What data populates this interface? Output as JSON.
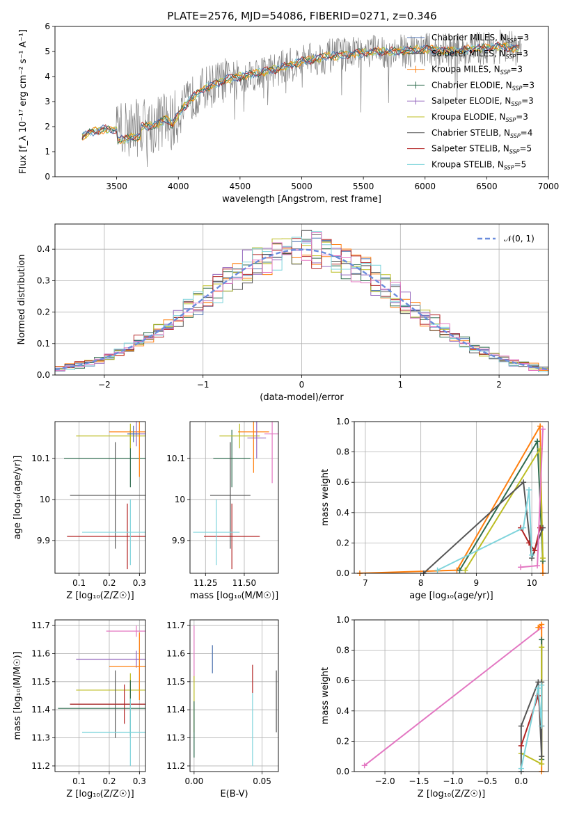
{
  "title": "PLATE=2576, MJD=54086, FIBERID=0271, z=0.346",
  "colors": {
    "Chabrier MILES": "#4c72b0",
    "Salpeter MILES": "#333333",
    "Kroupa MILES": "#ff7f0e",
    "Chabrier ELODIE": "#2e6b4e",
    "Salpeter ELODIE": "#9467bd",
    "Kroupa ELODIE": "#bcbd22",
    "Chabrier STELIB": "#555555",
    "Salpeter STELIB": "#b22222",
    "Kroupa STELIB": "#7fd4dc",
    "extra": "#e377c2",
    "blue": "#4c72b0",
    "normal": "#6a8cdc"
  },
  "chart_data": [
    {
      "id": "spectrum",
      "type": "line",
      "xlabel": "wavelength [Angstrom, rest frame]",
      "ylabel": "Flux [f_λ 10⁻¹⁷ erg cm⁻² s⁻¹ A⁻¹]",
      "xlim": [
        3000,
        7000
      ],
      "ylim": [
        0,
        6
      ],
      "xticks": [
        3500,
        4000,
        4500,
        5000,
        5500,
        6000,
        6500,
        7000
      ],
      "yticks": [
        0,
        1,
        2,
        3,
        4,
        5,
        6
      ],
      "legend_position": "right",
      "legend": [
        {
          "label": "Chabrier MILES, N",
          "sub": "SSP",
          "suffix": "=3",
          "key": "Chabrier MILES"
        },
        {
          "label": "Salpeter MILES, N",
          "sub": "SSP",
          "suffix": "=3",
          "key": "Salpeter MILES"
        },
        {
          "label": "Kroupa MILES, N",
          "sub": "SSP",
          "suffix": "=3",
          "key": "Kroupa MILES"
        },
        {
          "label": "Chabrier ELODIE, N",
          "sub": "SSP",
          "suffix": "=3",
          "key": "Chabrier ELODIE"
        },
        {
          "label": "Salpeter ELODIE, N",
          "sub": "SSP",
          "suffix": "=3",
          "key": "Salpeter ELODIE"
        },
        {
          "label": "Kroupa ELODIE, N",
          "sub": "SSP",
          "suffix": "=3",
          "key": "Kroupa ELODIE"
        },
        {
          "label": "Chabrier STELIB, N",
          "sub": "SSP",
          "suffix": "=4",
          "key": "Chabrier STELIB"
        },
        {
          "label": "Salpeter STELIB, N",
          "sub": "SSP",
          "suffix": "=5",
          "key": "Salpeter STELIB"
        },
        {
          "label": "Kroupa STELIB, N",
          "sub": "SSP",
          "suffix": "=5",
          "key": "Kroupa STELIB"
        }
      ],
      "continuum": {
        "wavelength": [
          3220,
          3300,
          3400,
          3500,
          3600,
          3700,
          3800,
          3900,
          3950,
          4000,
          4100,
          4200,
          4300,
          4400,
          4500,
          4600,
          4800,
          5000,
          5200,
          5400,
          5600,
          5800,
          6000,
          6200,
          6400,
          6600,
          6800
        ],
        "flux": [
          1.6,
          1.8,
          1.9,
          1.85,
          1.95,
          2.0,
          2.05,
          2.3,
          2.1,
          2.5,
          3.1,
          3.5,
          3.7,
          3.9,
          4.0,
          4.1,
          4.3,
          4.6,
          4.8,
          4.9,
          5.0,
          5.0,
          5.1,
          5.0,
          5.1,
          5.2,
          5.1
        ]
      }
    },
    {
      "id": "residuals",
      "type": "step",
      "xlabel": "(data-model)/error",
      "ylabel": "Normed distribution",
      "xlim": [
        -2.5,
        2.5
      ],
      "ylim": [
        0,
        0.48
      ],
      "xticks": [
        -2,
        -1,
        0,
        1,
        2
      ],
      "yticks": [
        0.0,
        0.1,
        0.2,
        0.3,
        0.4
      ],
      "legend_position": "top-right",
      "normal_label": "𝒩(0, 1)",
      "bin_width": 0.1
    },
    {
      "id": "age-vs-Z",
      "type": "errorbar",
      "xlabel": "Z [log₁₀(Z/Z☉)]",
      "ylabel": "age  [log₁₀(age/yr)]",
      "xlim": [
        0.02,
        0.32
      ],
      "ylim": [
        9.82,
        10.19
      ],
      "xticks": [
        0.1,
        0.2,
        0.3
      ],
      "yticks": [
        9.9,
        10.0,
        10.1
      ],
      "points": [
        {
          "key": "Chabrier ELODIE",
          "x": 0.27,
          "y": 10.1,
          "xerr": 0.22,
          "yerr": 0.07
        },
        {
          "key": "Kroupa ELODIE",
          "x": 0.27,
          "y": 10.155,
          "xerr": 0.18,
          "yerr": 0.03
        },
        {
          "key": "Kroupa MILES",
          "x": 0.3,
          "y": 10.165,
          "xerr": 0.1,
          "yerr": 0.11
        },
        {
          "key": "Salpeter ELODIE",
          "x": 0.29,
          "y": 10.16,
          "xerr": 0.03,
          "yerr": 0.03
        },
        {
          "key": "Chabrier STELIB",
          "x": 0.22,
          "y": 10.01,
          "xerr": 0.15,
          "yerr": 0.13
        },
        {
          "key": "Salpeter STELIB",
          "x": 0.26,
          "y": 9.91,
          "xerr": 0.2,
          "yerr": 0.08
        },
        {
          "key": "Kroupa STELIB",
          "x": 0.27,
          "y": 9.92,
          "xerr": 0.16,
          "yerr": 0.08
        },
        {
          "key": "Chabrier MILES",
          "x": 0.28,
          "y": 10.16,
          "xerr": 0.02,
          "yerr": 0.02
        }
      ]
    },
    {
      "id": "age-vs-mass",
      "type": "errorbar",
      "xlabel": "mass [log₁₀(M/M☉)]",
      "ylabel": "",
      "xlim": [
        11.15,
        11.72
      ],
      "ylim": [
        9.82,
        10.19
      ],
      "xticks": [
        11.25,
        11.5
      ],
      "xticklabels": [
        "11.25",
        "11.50"
      ],
      "yticks": [
        9.9,
        10.0,
        10.1
      ],
      "points": [
        {
          "key": "Chabrier ELODIE",
          "x": 11.42,
          "y": 10.1,
          "xerr": 0.12,
          "yerr": 0.07
        },
        {
          "key": "Kroupa ELODIE",
          "x": 11.47,
          "y": 10.155,
          "xerr": 0.13,
          "yerr": 0.03
        },
        {
          "key": "Kroupa MILES",
          "x": 11.56,
          "y": 10.165,
          "xerr": 0.1,
          "yerr": 0.1
        },
        {
          "key": "Salpeter ELODIE",
          "x": 11.58,
          "y": 10.15,
          "xerr": 0.06,
          "yerr": 0.05
        },
        {
          "key": "extra",
          "x": 11.68,
          "y": 10.16,
          "xerr": 0.05,
          "yerr": 0.12
        },
        {
          "key": "Chabrier STELIB",
          "x": 11.41,
          "y": 10.01,
          "xerr": 0.13,
          "yerr": 0.13
        },
        {
          "key": "Salpeter STELIB",
          "x": 11.42,
          "y": 9.91,
          "xerr": 0.18,
          "yerr": 0.08
        },
        {
          "key": "Kroupa STELIB",
          "x": 11.32,
          "y": 9.92,
          "xerr": 0.15,
          "yerr": 0.08
        }
      ]
    },
    {
      "id": "massweight-vs-age",
      "type": "line",
      "xlabel": "age  [log₁₀(age/yr)]",
      "ylabel": "mass weight",
      "xlim": [
        6.8,
        10.3
      ],
      "ylim": [
        0,
        1.0
      ],
      "xticks": [
        7,
        8,
        9,
        10
      ],
      "yticks": [
        0.0,
        0.2,
        0.4,
        0.6,
        0.8,
        1.0
      ],
      "series": [
        {
          "key": "Kroupa MILES",
          "x": [
            6.9,
            8.65,
            10.15,
            10.2
          ],
          "y": [
            0.0,
            0.02,
            0.97,
            0.0
          ]
        },
        {
          "key": "Chabrier ELODIE",
          "x": [
            8.7,
            10.1,
            10.2
          ],
          "y": [
            0.02,
            0.87,
            0.08
          ]
        },
        {
          "key": "Kroupa ELODIE",
          "x": [
            8.8,
            10.15,
            10.2
          ],
          "y": [
            0.02,
            0.82,
            0.1
          ]
        },
        {
          "key": "Chabrier STELIB",
          "x": [
            8.05,
            9.85,
            10.0,
            10.2
          ],
          "y": [
            0.0,
            0.6,
            0.1,
            0.3
          ]
        },
        {
          "key": "Salpeter STELIB",
          "x": [
            9.8,
            9.95,
            10.05,
            10.15
          ],
          "y": [
            0.3,
            0.2,
            0.15,
            0.3
          ]
        },
        {
          "key": "Kroupa STELIB",
          "x": [
            8.3,
            9.85,
            9.95,
            10.0
          ],
          "y": [
            0.02,
            0.3,
            0.55,
            0.12
          ]
        },
        {
          "key": "extra",
          "x": [
            9.8,
            10.1,
            10.2
          ],
          "y": [
            0.04,
            0.05,
            0.95
          ]
        }
      ]
    },
    {
      "id": "mass-vs-Z",
      "type": "errorbar",
      "xlabel": "Z [log₁₀(Z/Z☉)]",
      "ylabel": "mass [log₁₀(M/M☉)]",
      "xlim": [
        0.02,
        0.32
      ],
      "ylim": [
        11.18,
        11.72
      ],
      "xticks": [
        0.1,
        0.2,
        0.3
      ],
      "yticks": [
        11.2,
        11.3,
        11.4,
        11.5,
        11.6,
        11.7
      ],
      "points": [
        {
          "key": "extra",
          "x": 0.29,
          "y": 11.68,
          "xerr": 0.1,
          "yerr": 0.02
        },
        {
          "key": "Salpeter ELODIE",
          "x": 0.29,
          "y": 11.58,
          "xerr": 0.2,
          "yerr": 0.03
        },
        {
          "key": "Kroupa MILES",
          "x": 0.3,
          "y": 11.555,
          "xerr": 0.1,
          "yerr": 0.12
        },
        {
          "key": "Kroupa ELODIE",
          "x": 0.27,
          "y": 11.47,
          "xerr": 0.18,
          "yerr": 0.06
        },
        {
          "key": "Chabrier STELIB",
          "x": 0.22,
          "y": 11.42,
          "xerr": 0.15,
          "yerr": 0.12
        },
        {
          "key": "Salpeter STELIB",
          "x": 0.25,
          "y": 11.42,
          "xerr": 0.18,
          "yerr": 0.07
        },
        {
          "key": "Chabrier ELODIE",
          "x": 0.27,
          "y": 11.405,
          "xerr": 0.24,
          "yerr": 0.1
        },
        {
          "key": "Kroupa STELIB",
          "x": 0.27,
          "y": 11.32,
          "xerr": 0.16,
          "yerr": 0.12
        }
      ]
    },
    {
      "id": "mass-vs-ebv",
      "type": "errorbar",
      "xlabel": "E(B-V)",
      "ylabel": "",
      "xlim": [
        -0.003,
        0.062
      ],
      "ylim": [
        11.18,
        11.72
      ],
      "xticks": [
        0.0,
        0.05
      ],
      "xticklabels": [
        "0.00",
        "0.05"
      ],
      "yticks": [
        11.2,
        11.3,
        11.4,
        11.5,
        11.6,
        11.7
      ],
      "points": [
        {
          "key": "extra",
          "x": 0.0,
          "y": 11.6,
          "xerr": 0,
          "yerr": 0.1
        },
        {
          "key": "Kroupa ELODIE",
          "x": 0.0,
          "y": 11.42,
          "xerr": 0,
          "yerr": 0.1
        },
        {
          "key": "Chabrier ELODIE",
          "x": 0.0,
          "y": 11.33,
          "xerr": 0,
          "yerr": 0.1
        },
        {
          "key": "blue",
          "x": 0.0135,
          "y": 11.58,
          "xerr": 0,
          "yerr": 0.05
        },
        {
          "key": "Salpeter STELIB",
          "x": 0.043,
          "y": 11.51,
          "xerr": 0,
          "yerr": 0.05
        },
        {
          "key": "Kroupa STELIB",
          "x": 0.043,
          "y": 11.33,
          "xerr": 0,
          "yerr": 0.13
        },
        {
          "key": "Chabrier STELIB",
          "x": 0.0605,
          "y": 11.43,
          "xerr": 0,
          "yerr": 0.11
        }
      ]
    },
    {
      "id": "massweight-vs-Z",
      "type": "line",
      "xlabel": "Z [log₁₀(Z/Z☉)]",
      "ylabel": "mass weight",
      "xlim": [
        -2.45,
        0.4
      ],
      "ylim": [
        0,
        1.0
      ],
      "xticks": [
        -2.0,
        -1.5,
        -1.0,
        -0.5,
        0.0
      ],
      "xticklabels": [
        "−2.0",
        "−1.5",
        "−1.0",
        "−0.5",
        "0.0"
      ],
      "yticks": [
        0.0,
        0.2,
        0.4,
        0.6,
        0.8,
        1.0
      ],
      "series": [
        {
          "key": "extra",
          "x": [
            -2.3,
            0.3
          ],
          "y": [
            0.04,
            0.95
          ]
        },
        {
          "key": "Kroupa MILES",
          "x": [
            0.3,
            0.3,
            0.25
          ],
          "y": [
            0.0,
            0.97,
            0.95
          ]
        },
        {
          "key": "Chabrier ELODIE",
          "x": [
            0.3,
            0.3
          ],
          "y": [
            0.08,
            0.87
          ]
        },
        {
          "key": "Kroupa ELODIE",
          "x": [
            0.0,
            0.3,
            0.3
          ],
          "y": [
            0.12,
            0.05,
            0.82
          ]
        },
        {
          "key": "Chabrier STELIB",
          "x": [
            0.0,
            0.0,
            0.25,
            0.3,
            0.3
          ],
          "y": [
            0.0,
            0.3,
            0.59,
            0.1,
            0.59
          ]
        },
        {
          "key": "Salpeter STELIB",
          "x": [
            0.0,
            0.25,
            0.3
          ],
          "y": [
            0.17,
            0.5,
            0.3
          ]
        },
        {
          "key": "Kroupa STELIB",
          "x": [
            0.0,
            0.25,
            0.3,
            0.3
          ],
          "y": [
            0.02,
            0.55,
            0.3,
            0.57
          ]
        }
      ]
    }
  ]
}
